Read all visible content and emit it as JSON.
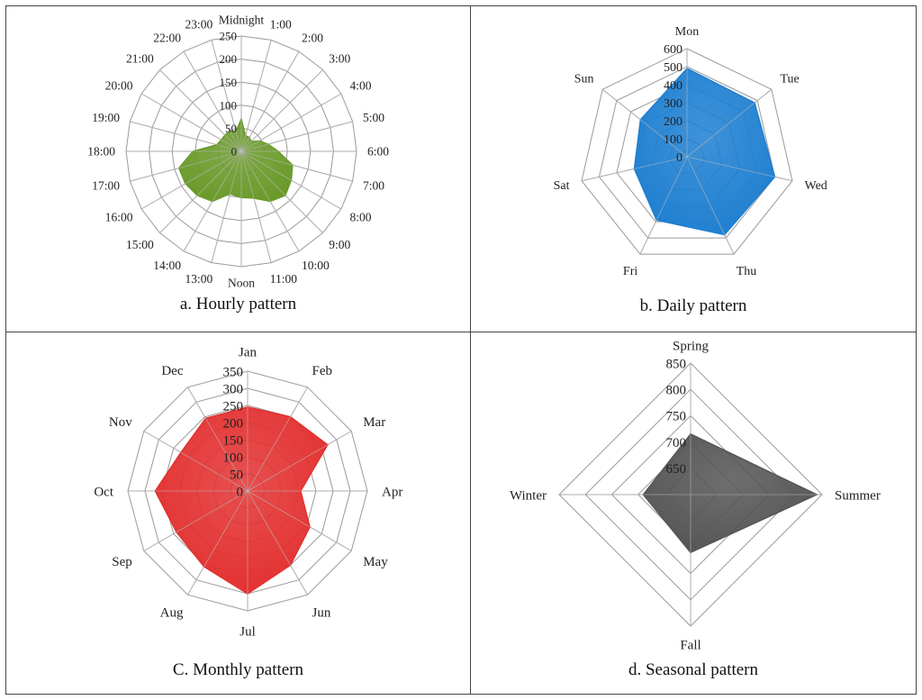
{
  "chart_data": [
    {
      "type": "radar",
      "caption": "a. Hourly pattern",
      "categories": [
        "Midnight",
        "1:00",
        "2:00",
        "3:00",
        "4:00",
        "5:00",
        "6:00",
        "7:00",
        "8:00",
        "9:00",
        "10:00",
        "11:00",
        "Noon",
        "13:00",
        "14:00",
        "15:00",
        "16:00",
        "17:00",
        "18:00",
        "19:00",
        "20:00",
        "21:00",
        "22:00",
        "23:00"
      ],
      "values": [
        70,
        35,
        35,
        30,
        45,
        60,
        80,
        115,
        125,
        135,
        125,
        105,
        100,
        95,
        125,
        135,
        140,
        140,
        105,
        55,
        50,
        50,
        50,
        45
      ],
      "rmin": 0,
      "rmax": 250,
      "ticks": [
        "0",
        "50",
        "100",
        "150",
        "200",
        "250"
      ],
      "color": "#6a9a2a"
    },
    {
      "type": "radar",
      "caption": "b. Daily pattern",
      "categories": [
        "Mon",
        "Tue",
        "Wed",
        "Thu",
        "Fri",
        "Sat",
        "Sun"
      ],
      "values": [
        490,
        480,
        500,
        480,
        390,
        300,
        330
      ],
      "rmin": 0,
      "rmax": 600,
      "ticks": [
        "0",
        "100",
        "200",
        "300",
        "400",
        "500",
        "600"
      ],
      "color": "#1e7fd1"
    },
    {
      "type": "radar",
      "caption": "C. Monthly pattern",
      "categories": [
        "Jan",
        "Feb",
        "Mar",
        "Apr",
        "May",
        "Jun",
        "Jul",
        "Aug",
        "Sep",
        "Oct",
        "Nov",
        "Dec"
      ],
      "values": [
        245,
        250,
        270,
        155,
        210,
        250,
        300,
        255,
        240,
        270,
        225,
        245
      ],
      "rmin": 0,
      "rmax": 350,
      "ticks": [
        "0",
        "50",
        "100",
        "150",
        "200",
        "250",
        "300",
        "350"
      ],
      "color": "#e33030"
    },
    {
      "type": "radar",
      "caption": "d. Seasonal pattern",
      "categories": [
        "Spring",
        "Summer",
        "Fall",
        "Winter"
      ],
      "values": [
        715,
        840,
        710,
        690
      ],
      "rmin": 600,
      "rmax": 850,
      "ticks": [
        "650",
        "700",
        "750",
        "800",
        "850"
      ],
      "color": "#555555"
    }
  ]
}
